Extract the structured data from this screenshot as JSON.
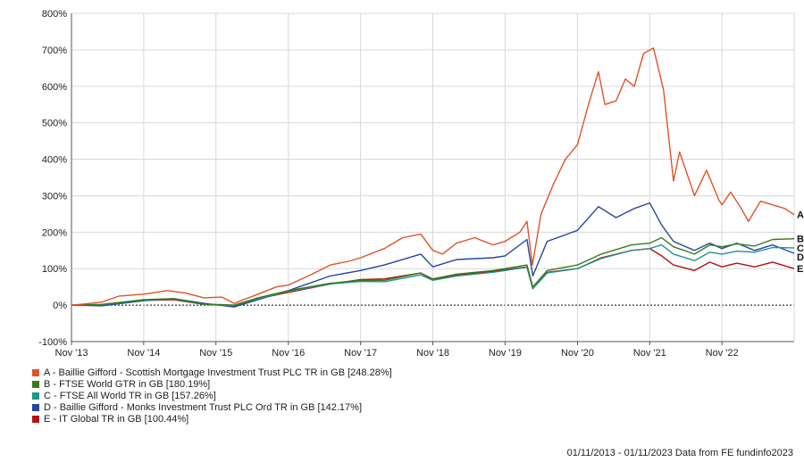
{
  "chart_data": {
    "type": "line",
    "ylim": [
      -100,
      800
    ],
    "yticks": [
      "-100%",
      "0%",
      "100%",
      "200%",
      "300%",
      "400%",
      "500%",
      "600%",
      "700%",
      "800%"
    ],
    "xlim": [
      "2013-11-01",
      "2023-11-01"
    ],
    "xticks": [
      {
        "date": "2013-11-01",
        "label": "Nov '13"
      },
      {
        "date": "2014-11-01",
        "label": "Nov '14"
      },
      {
        "date": "2015-11-01",
        "label": "Nov '15"
      },
      {
        "date": "2016-11-01",
        "label": "Nov '16"
      },
      {
        "date": "2017-11-01",
        "label": "Nov '17"
      },
      {
        "date": "2018-11-01",
        "label": "Nov '18"
      },
      {
        "date": "2019-11-01",
        "label": "Nov '19"
      },
      {
        "date": "2020-11-01",
        "label": "Nov '20"
      },
      {
        "date": "2021-11-01",
        "label": "Nov '21"
      },
      {
        "date": "2022-11-01",
        "label": "Nov '22"
      }
    ],
    "grid": true,
    "legend_position": "bottom-left",
    "series": [
      {
        "letter": "A",
        "name": "A - Baillie Gifford - Scottish Mortgage Investment Trust PLC TR in GB [248.28%]",
        "color": "#e0532a",
        "points": [
          [
            "2013-11-01",
            0
          ],
          [
            "2014-01-01",
            3
          ],
          [
            "2014-04-01",
            8
          ],
          [
            "2014-07-01",
            25
          ],
          [
            "2014-11-01",
            30
          ],
          [
            "2015-03-01",
            40
          ],
          [
            "2015-06-01",
            33
          ],
          [
            "2015-09-01",
            20
          ],
          [
            "2015-12-01",
            22
          ],
          [
            "2016-02-01",
            5
          ],
          [
            "2016-06-01",
            30
          ],
          [
            "2016-09-01",
            50
          ],
          [
            "2016-11-01",
            55
          ],
          [
            "2017-03-01",
            85
          ],
          [
            "2017-06-01",
            110
          ],
          [
            "2017-09-01",
            120
          ],
          [
            "2017-11-01",
            130
          ],
          [
            "2018-03-01",
            155
          ],
          [
            "2018-06-01",
            185
          ],
          [
            "2018-09-01",
            195
          ],
          [
            "2018-11-01",
            150
          ],
          [
            "2018-12-20",
            140
          ],
          [
            "2019-03-01",
            170
          ],
          [
            "2019-06-01",
            185
          ],
          [
            "2019-09-01",
            165
          ],
          [
            "2019-11-01",
            175
          ],
          [
            "2020-01-15",
            200
          ],
          [
            "2020-02-20",
            230
          ],
          [
            "2020-03-18",
            110
          ],
          [
            "2020-05-01",
            250
          ],
          [
            "2020-07-01",
            330
          ],
          [
            "2020-09-01",
            400
          ],
          [
            "2020-11-01",
            440
          ],
          [
            "2021-01-01",
            560
          ],
          [
            "2021-02-15",
            640
          ],
          [
            "2021-03-20",
            550
          ],
          [
            "2021-05-15",
            560
          ],
          [
            "2021-07-01",
            620
          ],
          [
            "2021-08-15",
            600
          ],
          [
            "2021-10-01",
            690
          ],
          [
            "2021-11-20",
            705
          ],
          [
            "2022-01-10",
            590
          ],
          [
            "2022-03-01",
            340
          ],
          [
            "2022-04-01",
            420
          ],
          [
            "2022-06-15",
            300
          ],
          [
            "2022-08-15",
            370
          ],
          [
            "2022-10-15",
            290
          ],
          [
            "2022-11-01",
            275
          ],
          [
            "2022-12-15",
            310
          ],
          [
            "2023-02-01",
            270
          ],
          [
            "2023-03-15",
            230
          ],
          [
            "2023-05-15",
            285
          ],
          [
            "2023-07-15",
            275
          ],
          [
            "2023-09-15",
            265
          ],
          [
            "2023-11-01",
            248
          ]
        ]
      },
      {
        "letter": "B",
        "name": "B - FTSE World GTR in GB [180.19%]",
        "color": "#3a7a1a",
        "points": [
          [
            "2013-11-01",
            0
          ],
          [
            "2014-04-01",
            2
          ],
          [
            "2014-11-01",
            15
          ],
          [
            "2015-04-01",
            18
          ],
          [
            "2015-09-01",
            3
          ],
          [
            "2016-02-01",
            0
          ],
          [
            "2016-06-01",
            20
          ],
          [
            "2016-11-01",
            40
          ],
          [
            "2017-06-01",
            60
          ],
          [
            "2017-11-01",
            68
          ],
          [
            "2018-03-01",
            68
          ],
          [
            "2018-09-01",
            88
          ],
          [
            "2018-11-01",
            72
          ],
          [
            "2019-03-01",
            85
          ],
          [
            "2019-09-01",
            95
          ],
          [
            "2019-11-01",
            100
          ],
          [
            "2020-02-20",
            110
          ],
          [
            "2020-03-20",
            50
          ],
          [
            "2020-06-01",
            95
          ],
          [
            "2020-11-01",
            110
          ],
          [
            "2021-03-01",
            140
          ],
          [
            "2021-08-01",
            165
          ],
          [
            "2021-11-01",
            170
          ],
          [
            "2021-12-31",
            185
          ],
          [
            "2022-03-01",
            160
          ],
          [
            "2022-06-15",
            140
          ],
          [
            "2022-09-01",
            165
          ],
          [
            "2022-11-01",
            160
          ],
          [
            "2023-01-15",
            168
          ],
          [
            "2023-04-15",
            162
          ],
          [
            "2023-07-15",
            180
          ],
          [
            "2023-11-01",
            182
          ]
        ]
      },
      {
        "letter": "C",
        "name": "C - FTSE All World TR in GB [157.26%]",
        "color": "#20968c",
        "points": [
          [
            "2013-11-01",
            0
          ],
          [
            "2014-04-01",
            1
          ],
          [
            "2014-11-01",
            14
          ],
          [
            "2015-04-01",
            17
          ],
          [
            "2015-09-01",
            2
          ],
          [
            "2016-02-01",
            -1
          ],
          [
            "2016-06-01",
            18
          ],
          [
            "2016-11-01",
            38
          ],
          [
            "2017-06-01",
            58
          ],
          [
            "2017-11-01",
            65
          ],
          [
            "2018-03-01",
            64
          ],
          [
            "2018-09-01",
            83
          ],
          [
            "2018-11-01",
            68
          ],
          [
            "2019-03-01",
            80
          ],
          [
            "2019-09-01",
            90
          ],
          [
            "2019-11-01",
            95
          ],
          [
            "2020-02-20",
            104
          ],
          [
            "2020-03-20",
            45
          ],
          [
            "2020-06-01",
            88
          ],
          [
            "2020-11-01",
            100
          ],
          [
            "2021-03-01",
            128
          ],
          [
            "2021-08-01",
            150
          ],
          [
            "2021-11-01",
            155
          ],
          [
            "2021-12-31",
            165
          ],
          [
            "2022-03-01",
            140
          ],
          [
            "2022-06-15",
            122
          ],
          [
            "2022-09-01",
            145
          ],
          [
            "2022-11-01",
            140
          ],
          [
            "2023-01-15",
            148
          ],
          [
            "2023-04-15",
            145
          ],
          [
            "2023-07-15",
            158
          ],
          [
            "2023-11-01",
            157
          ]
        ]
      },
      {
        "letter": "D",
        "name": "D - Baillie Gifford - Monks Investment Trust PLC Ord TR in GB [142.17%]",
        "color": "#2447a0",
        "points": [
          [
            "2013-11-01",
            0
          ],
          [
            "2014-04-01",
            -2
          ],
          [
            "2014-11-01",
            12
          ],
          [
            "2015-04-01",
            18
          ],
          [
            "2015-09-01",
            5
          ],
          [
            "2016-02-01",
            -5
          ],
          [
            "2016-06-01",
            15
          ],
          [
            "2016-11-01",
            40
          ],
          [
            "2017-06-01",
            80
          ],
          [
            "2017-11-01",
            95
          ],
          [
            "2018-03-01",
            110
          ],
          [
            "2018-09-01",
            140
          ],
          [
            "2018-11-01",
            105
          ],
          [
            "2019-03-01",
            125
          ],
          [
            "2019-09-01",
            130
          ],
          [
            "2019-11-01",
            135
          ],
          [
            "2020-02-20",
            180
          ],
          [
            "2020-03-20",
            80
          ],
          [
            "2020-06-01",
            175
          ],
          [
            "2020-11-01",
            205
          ],
          [
            "2021-02-15",
            270
          ],
          [
            "2021-05-15",
            240
          ],
          [
            "2021-08-15",
            265
          ],
          [
            "2021-11-01",
            280
          ],
          [
            "2021-12-31",
            220
          ],
          [
            "2022-03-01",
            175
          ],
          [
            "2022-06-15",
            150
          ],
          [
            "2022-09-01",
            170
          ],
          [
            "2022-11-01",
            155
          ],
          [
            "2023-01-15",
            170
          ],
          [
            "2023-04-15",
            150
          ],
          [
            "2023-07-15",
            165
          ],
          [
            "2023-11-01",
            142
          ]
        ]
      },
      {
        "letter": "E",
        "name": "E - IT Global TR in GB [100.44%]",
        "color": "#b31212",
        "points": [
          [
            "2013-11-01",
            0
          ],
          [
            "2014-04-01",
            0
          ],
          [
            "2014-11-01",
            13
          ],
          [
            "2015-04-01",
            15
          ],
          [
            "2015-09-01",
            2
          ],
          [
            "2016-02-01",
            -2
          ],
          [
            "2016-06-01",
            18
          ],
          [
            "2016-11-01",
            35
          ],
          [
            "2017-06-01",
            58
          ],
          [
            "2017-11-01",
            70
          ],
          [
            "2018-03-01",
            72
          ],
          [
            "2018-09-01",
            88
          ],
          [
            "2018-11-01",
            70
          ],
          [
            "2019-03-01",
            82
          ],
          [
            "2019-09-01",
            92
          ],
          [
            "2019-11-01",
            97
          ],
          [
            "2020-02-20",
            105
          ],
          [
            "2020-03-20",
            45
          ],
          [
            "2020-06-01",
            90
          ],
          [
            "2020-11-01",
            100
          ],
          [
            "2021-03-01",
            130
          ],
          [
            "2021-08-01",
            150
          ],
          [
            "2021-11-01",
            155
          ],
          [
            "2021-12-31",
            135
          ],
          [
            "2022-03-01",
            110
          ],
          [
            "2022-06-15",
            95
          ],
          [
            "2022-09-01",
            118
          ],
          [
            "2022-11-01",
            105
          ],
          [
            "2023-01-15",
            115
          ],
          [
            "2023-04-15",
            105
          ],
          [
            "2023-07-15",
            118
          ],
          [
            "2023-11-01",
            100
          ]
        ]
      }
    ]
  },
  "footer": {
    "note": "01/11/2013 - 01/11/2023 Data from FE fundinfo2023"
  }
}
